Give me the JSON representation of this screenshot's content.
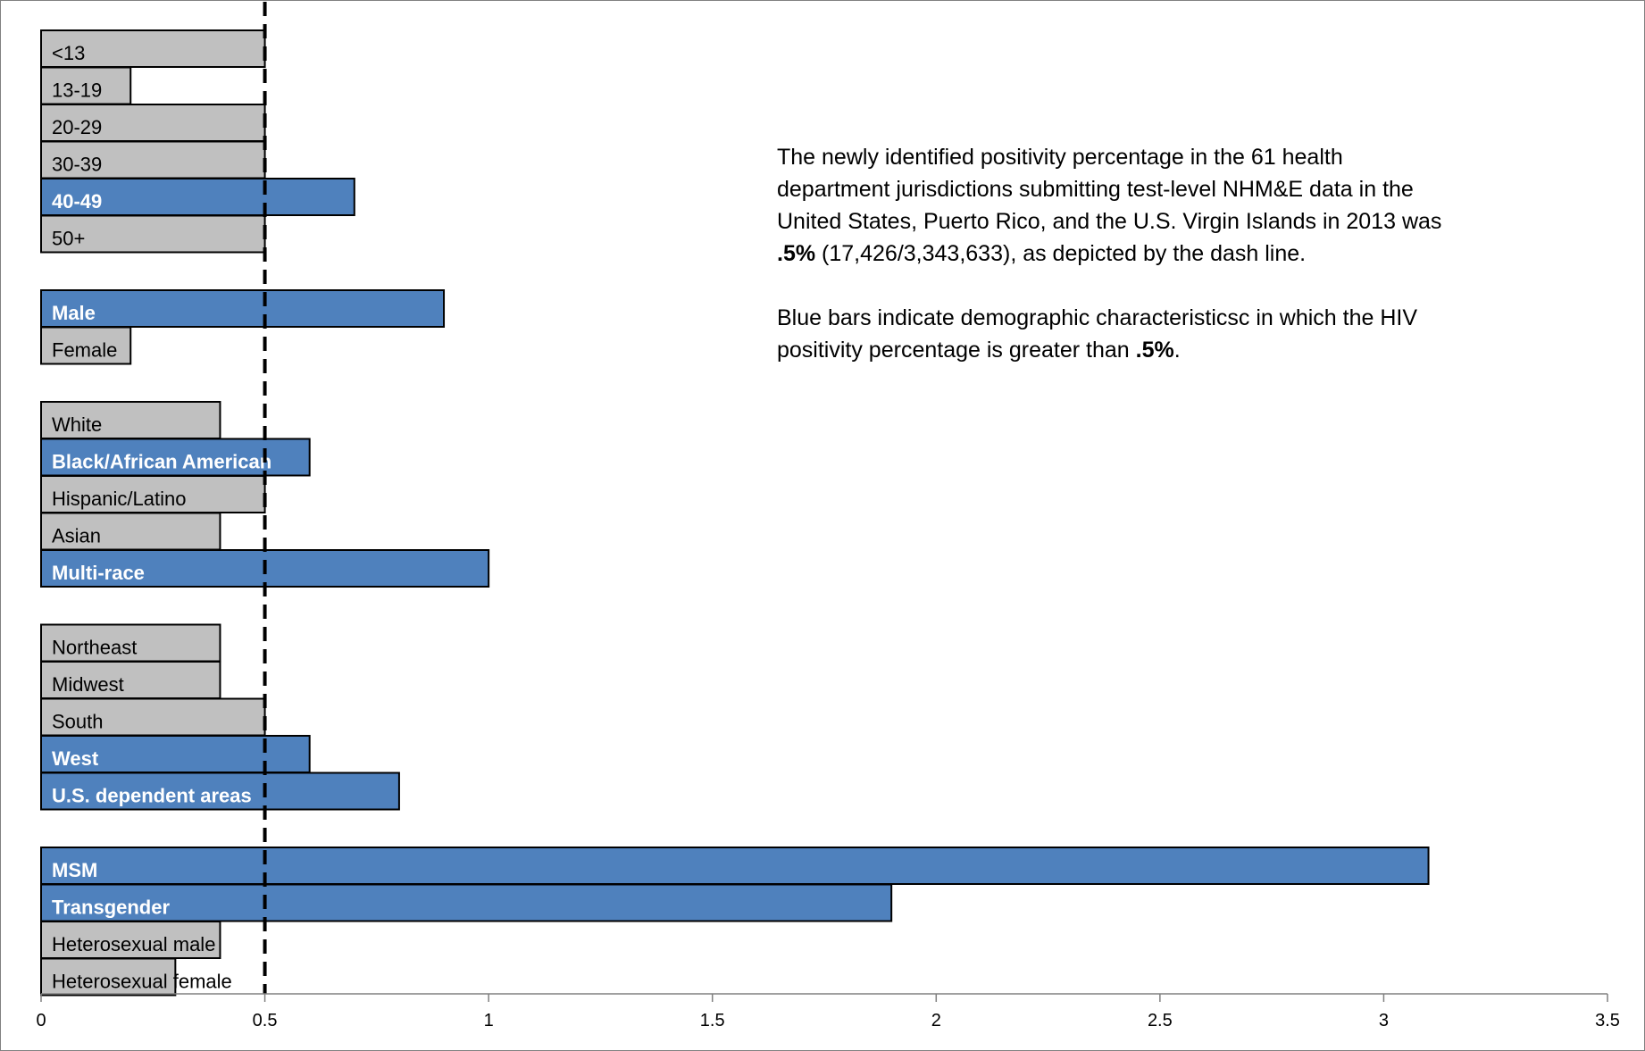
{
  "chart_data": {
    "type": "bar",
    "orientation": "horizontal",
    "title": "",
    "xlabel": "",
    "ylabel": "",
    "xlim": [
      0,
      3.5
    ],
    "xticks": [
      "0",
      "0.5",
      "1",
      "1.5",
      "2",
      "2.5",
      "3",
      "3.5"
    ],
    "reference_line": 0.5,
    "grid": false,
    "colors": {
      "above": "#4f81bd",
      "below": "#c0c0c0",
      "border": "#000000",
      "above_label": "#ffffff",
      "below_label": "#000000"
    },
    "groups": [
      {
        "categories": [
          "<13",
          "13-19",
          "20-29",
          "30-39",
          "40-49",
          "50+"
        ],
        "values": [
          0.5,
          0.2,
          0.5,
          0.5,
          0.7,
          0.5
        ],
        "highlight": [
          false,
          false,
          false,
          false,
          true,
          false
        ]
      },
      {
        "categories": [
          "Male",
          "Female"
        ],
        "values": [
          0.9,
          0.2
        ],
        "highlight": [
          true,
          false
        ]
      },
      {
        "categories": [
          "White",
          "Black/African American",
          "Hispanic/Latino",
          "Asian",
          "Multi-race"
        ],
        "values": [
          0.4,
          0.6,
          0.5,
          0.4,
          1.0
        ],
        "highlight": [
          false,
          true,
          false,
          false,
          true
        ]
      },
      {
        "categories": [
          "Northeast",
          "Midwest",
          "South",
          "West",
          "U.S. dependent areas"
        ],
        "values": [
          0.4,
          0.4,
          0.5,
          0.6,
          0.8
        ],
        "highlight": [
          false,
          false,
          false,
          true,
          true
        ]
      },
      {
        "categories": [
          "MSM",
          "Transgender",
          "Heterosexual male",
          "Heterosexual female"
        ],
        "values": [
          3.1,
          1.9,
          0.4,
          0.3
        ],
        "highlight": [
          true,
          true,
          false,
          false
        ]
      }
    ]
  },
  "annotation": {
    "p1_before": "The newly identified positivity percentage in the 61 health department jurisdictions submitting test-level NHM&E data in the United States, Puerto Rico, and the U.S. Virgin Islands in 2013 was ",
    "p1_bold": ".5%",
    "p1_after": " (17,426/3,343,633), as depicted by the dash line.",
    "p2_before": "Blue bars indicate demographic characteristicsc in which the HIV positivity percentage is greater than ",
    "p2_bold": ".5%",
    "p2_after": "."
  }
}
